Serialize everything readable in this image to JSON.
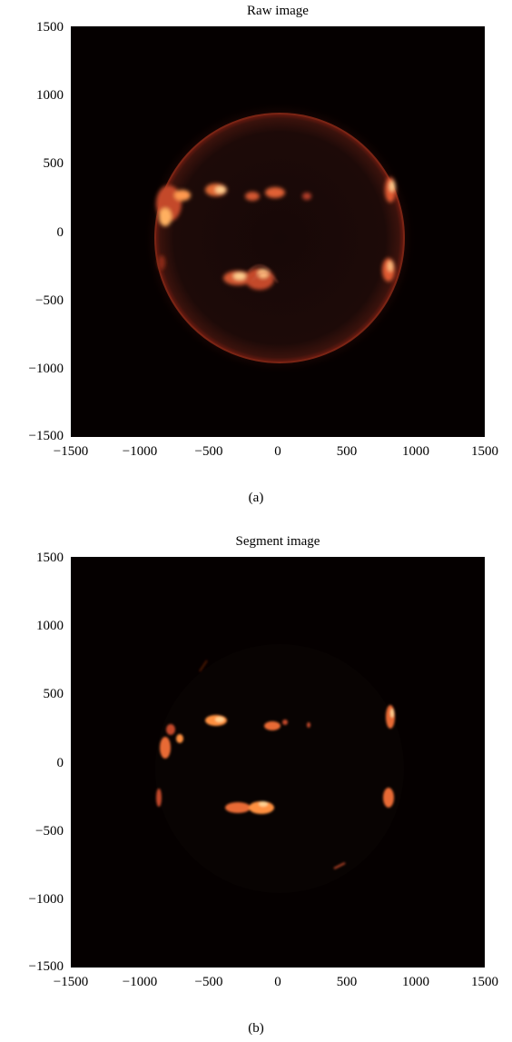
{
  "panels": [
    {
      "title": "Raw image",
      "caption": "(a)",
      "image": "raw-solar-euv-image",
      "x_ticks": [
        "−1500",
        "−1000",
        "−500",
        "0",
        "500",
        "1000",
        "1500"
      ],
      "y_ticks": [
        "1500",
        "1000",
        "500",
        "0",
        "−500",
        "−1000",
        "−1500"
      ],
      "colors": {
        "background": "#050000",
        "limb": "#6b1a10",
        "active": "#ffb060"
      }
    },
    {
      "title": "Segment image",
      "caption": "(b)",
      "image": "segmented-active-regions-image",
      "x_ticks": [
        "−1500",
        "−1000",
        "−500",
        "0",
        "500",
        "1000",
        "1500"
      ],
      "y_ticks": [
        "1500",
        "1000",
        "500",
        "0",
        "−500",
        "−1000",
        "−1500"
      ],
      "colors": {
        "background": "#050000",
        "active": "#ff9040"
      }
    }
  ]
}
